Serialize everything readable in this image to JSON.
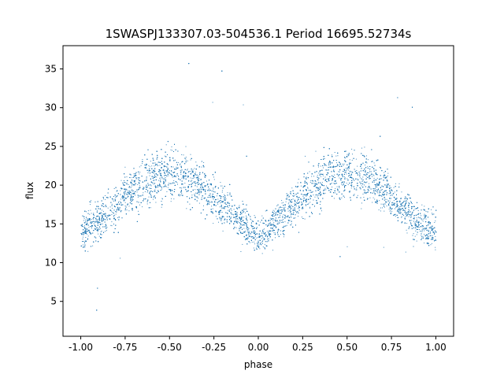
{
  "chart_data": {
    "type": "scatter",
    "title": "1SWASPJ133307.03-504536.1 Period 16695.52734s",
    "xlabel": "phase",
    "ylabel": "flux",
    "xlim": [
      -1.1,
      1.1
    ],
    "ylim": [
      0.5,
      38.0
    ],
    "x_ticks": [
      "-1.00",
      "-0.75",
      "-0.50",
      "-0.25",
      "0.00",
      "0.25",
      "0.50",
      "0.75",
      "1.00"
    ],
    "y_ticks": [
      "5",
      "10",
      "15",
      "20",
      "25",
      "30",
      "35"
    ],
    "grid": false,
    "point_color": "#1f77b4",
    "series": [
      {
        "description_points": "dense folded light curve sampled along phase",
        "x": [
          -1.0,
          -0.9,
          -0.8,
          -0.7,
          -0.6,
          -0.5,
          -0.4,
          -0.3,
          -0.2,
          -0.1,
          0.0,
          0.1,
          0.2,
          0.3,
          0.4,
          0.5,
          0.6,
          0.7,
          0.8,
          0.9,
          1.0
        ],
        "y": [
          14.0,
          15.5,
          17.5,
          19.5,
          21.0,
          21.5,
          21.0,
          19.5,
          17.5,
          15.5,
          13.0,
          15.5,
          17.5,
          19.5,
          21.0,
          21.5,
          21.0,
          19.5,
          17.5,
          15.5,
          14.0
        ],
        "spread": [
          4.5,
          4.5,
          5.0,
          5.5,
          5.5,
          5.5,
          5.5,
          5.0,
          4.5,
          4.0,
          3.5,
          4.0,
          4.5,
          5.0,
          5.5,
          5.5,
          5.5,
          5.0,
          4.5,
          4.5,
          4.5
        ]
      }
    ]
  }
}
